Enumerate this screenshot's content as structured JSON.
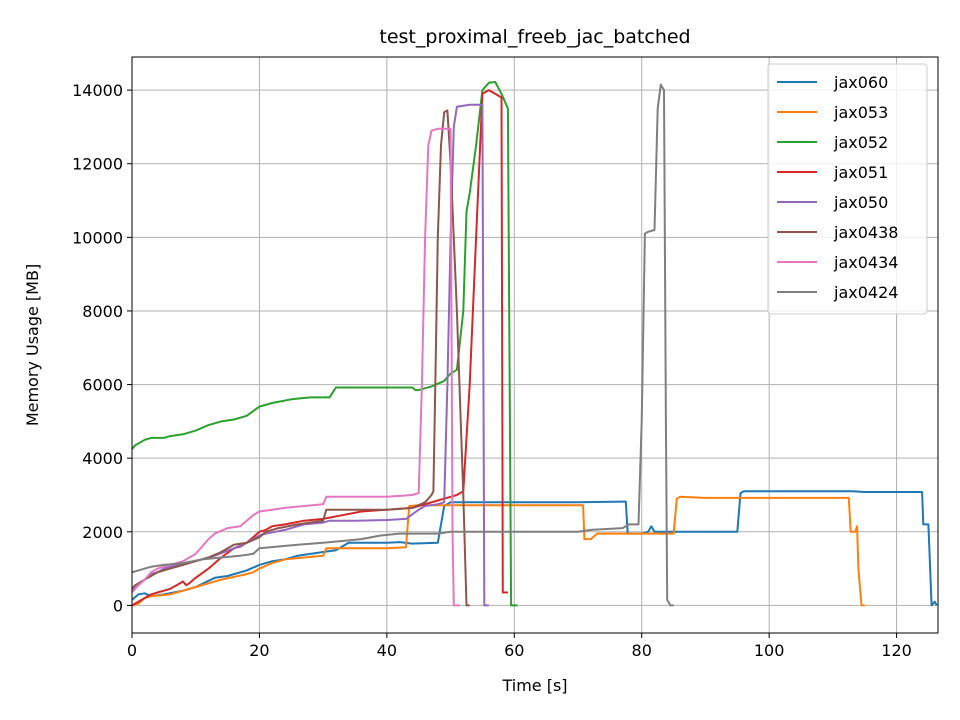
{
  "chart_data": {
    "type": "line",
    "title": "test_proximal_freeb_jac_batched",
    "xlabel": "Time [s]",
    "ylabel": "Memory Usage [MB]",
    "xlim": [
      0,
      126.5
    ],
    "ylim": [
      -750,
      14900
    ],
    "xticks": [
      0,
      20,
      40,
      60,
      80,
      100,
      120
    ],
    "yticks": [
      0,
      2000,
      4000,
      6000,
      8000,
      10000,
      12000,
      14000
    ],
    "grid": true,
    "legend_position": "top-right",
    "series": [
      {
        "name": "jax060",
        "color": "#1f77b4",
        "points": [
          [
            0,
            150
          ],
          [
            1,
            300
          ],
          [
            2,
            330
          ],
          [
            3,
            250
          ],
          [
            5,
            300
          ],
          [
            8,
            400
          ],
          [
            10,
            500
          ],
          [
            13,
            750
          ],
          [
            15,
            800
          ],
          [
            18,
            950
          ],
          [
            20,
            1100
          ],
          [
            22,
            1200
          ],
          [
            24,
            1250
          ],
          [
            26,
            1350
          ],
          [
            28,
            1400
          ],
          [
            30,
            1450
          ],
          [
            32,
            1500
          ],
          [
            34,
            1700
          ],
          [
            40,
            1700
          ],
          [
            42,
            1720
          ],
          [
            44,
            1680
          ],
          [
            48,
            1700
          ],
          [
            49,
            2700
          ],
          [
            50,
            2800
          ],
          [
            60,
            2800
          ],
          [
            70,
            2800
          ],
          [
            77,
            2820
          ],
          [
            77.5,
            2820
          ],
          [
            77.8,
            1950
          ],
          [
            80,
            1950
          ],
          [
            81,
            2000
          ],
          [
            81.5,
            2150
          ],
          [
            82,
            2000
          ],
          [
            90,
            2000
          ],
          [
            95,
            2000
          ],
          [
            95.5,
            3050
          ],
          [
            96,
            3100
          ],
          [
            110,
            3100
          ],
          [
            113,
            3100
          ],
          [
            115,
            3080
          ],
          [
            120,
            3080
          ],
          [
            124,
            3080
          ],
          [
            124.2,
            2200
          ],
          [
            125,
            2200
          ],
          [
            125.5,
            0
          ],
          [
            126,
            100
          ],
          [
            126.3,
            0
          ]
        ]
      },
      {
        "name": "jax053",
        "color": "#ff7f0e",
        "points": [
          [
            0,
            0
          ],
          [
            1,
            50
          ],
          [
            2,
            200
          ],
          [
            3,
            250
          ],
          [
            6,
            300
          ],
          [
            10,
            500
          ],
          [
            14,
            700
          ],
          [
            18,
            850
          ],
          [
            19,
            900
          ],
          [
            20,
            1000
          ],
          [
            22,
            1150
          ],
          [
            24,
            1250
          ],
          [
            27,
            1300
          ],
          [
            30,
            1350
          ],
          [
            30.5,
            1550
          ],
          [
            35,
            1550
          ],
          [
            40,
            1550
          ],
          [
            43,
            1580
          ],
          [
            43.5,
            2700
          ],
          [
            45,
            2720
          ],
          [
            50,
            2720
          ],
          [
            60,
            2720
          ],
          [
            70,
            2720
          ],
          [
            70.8,
            2720
          ],
          [
            71,
            1800
          ],
          [
            72,
            1800
          ],
          [
            73,
            1950
          ],
          [
            75,
            1950
          ],
          [
            80,
            1950
          ],
          [
            85,
            1950
          ],
          [
            85.5,
            2900
          ],
          [
            86,
            2950
          ],
          [
            90,
            2920
          ],
          [
            100,
            2920
          ],
          [
            110,
            2920
          ],
          [
            112.5,
            2920
          ],
          [
            112.8,
            2000
          ],
          [
            113.5,
            2000
          ],
          [
            113.8,
            2150
          ],
          [
            114,
            1000
          ],
          [
            114.5,
            0
          ],
          [
            115,
            0
          ]
        ]
      },
      {
        "name": "jax052",
        "color": "#2ca02c",
        "points": [
          [
            0,
            4250
          ],
          [
            0.5,
            4350
          ],
          [
            1,
            4400
          ],
          [
            2,
            4500
          ],
          [
            3,
            4550
          ],
          [
            5,
            4550
          ],
          [
            6,
            4600
          ],
          [
            8,
            4650
          ],
          [
            10,
            4750
          ],
          [
            12,
            4900
          ],
          [
            14,
            5000
          ],
          [
            16,
            5050
          ],
          [
            18,
            5150
          ],
          [
            20,
            5400
          ],
          [
            22,
            5500
          ],
          [
            25,
            5600
          ],
          [
            28,
            5650
          ],
          [
            31,
            5650
          ],
          [
            32,
            5920
          ],
          [
            35,
            5920
          ],
          [
            40,
            5920
          ],
          [
            44,
            5920
          ],
          [
            44.5,
            5850
          ],
          [
            45,
            5850
          ],
          [
            47,
            5950
          ],
          [
            49,
            6100
          ],
          [
            50,
            6300
          ],
          [
            51,
            6400
          ],
          [
            52,
            8000
          ],
          [
            52.5,
            10700
          ],
          [
            53,
            11200
          ],
          [
            54,
            12500
          ],
          [
            55,
            14000
          ],
          [
            56,
            14200
          ],
          [
            57,
            14220
          ],
          [
            58,
            13900
          ],
          [
            59,
            13500
          ],
          [
            59.5,
            0
          ],
          [
            60.5,
            0
          ]
        ]
      },
      {
        "name": "jax051",
        "color": "#d62728",
        "points": [
          [
            0,
            0
          ],
          [
            2,
            200
          ],
          [
            3,
            300
          ],
          [
            4,
            350
          ],
          [
            5,
            400
          ],
          [
            6,
            450
          ],
          [
            7,
            550
          ],
          [
            8,
            650
          ],
          [
            8.5,
            550
          ],
          [
            9,
            600
          ],
          [
            10,
            750
          ],
          [
            12,
            1000
          ],
          [
            14,
            1300
          ],
          [
            16,
            1550
          ],
          [
            17,
            1600
          ],
          [
            18,
            1700
          ],
          [
            19,
            1850
          ],
          [
            20,
            2000
          ],
          [
            21,
            2050
          ],
          [
            22,
            2150
          ],
          [
            24,
            2200
          ],
          [
            27,
            2300
          ],
          [
            30,
            2350
          ],
          [
            33,
            2450
          ],
          [
            36,
            2550
          ],
          [
            40,
            2600
          ],
          [
            44,
            2650
          ],
          [
            46,
            2750
          ],
          [
            48,
            2850
          ],
          [
            50,
            2950
          ],
          [
            51,
            3000
          ],
          [
            52,
            3100
          ],
          [
            53,
            6000
          ],
          [
            54,
            10000
          ],
          [
            55,
            13900
          ],
          [
            56,
            14000
          ],
          [
            57,
            13900
          ],
          [
            58,
            13800
          ],
          [
            58.2,
            350
          ],
          [
            59,
            350
          ]
        ]
      },
      {
        "name": "jax050",
        "color": "#9467bd",
        "points": [
          [
            0,
            400
          ],
          [
            1,
            550
          ],
          [
            2,
            700
          ],
          [
            3,
            850
          ],
          [
            4,
            900
          ],
          [
            5,
            1000
          ],
          [
            6,
            1050
          ],
          [
            7,
            1100
          ],
          [
            10,
            1200
          ],
          [
            13,
            1350
          ],
          [
            16,
            1550
          ],
          [
            18,
            1700
          ],
          [
            20,
            1900
          ],
          [
            21,
            1950
          ],
          [
            24,
            2050
          ],
          [
            27,
            2200
          ],
          [
            30,
            2250
          ],
          [
            31,
            2300
          ],
          [
            35,
            2300
          ],
          [
            40,
            2320
          ],
          [
            43,
            2350
          ],
          [
            45,
            2600
          ],
          [
            46,
            2700
          ],
          [
            48,
            2750
          ],
          [
            49,
            2800
          ],
          [
            49.5,
            6000
          ],
          [
            50,
            10000
          ],
          [
            50.5,
            13000
          ],
          [
            51,
            13550
          ],
          [
            53,
            13600
          ],
          [
            55,
            13600
          ],
          [
            55.3,
            0
          ],
          [
            56,
            0
          ]
        ]
      },
      {
        "name": "jax0438",
        "color": "#8c564b",
        "points": [
          [
            0,
            450
          ],
          [
            0.5,
            550
          ],
          [
            1,
            600
          ],
          [
            2,
            700
          ],
          [
            3,
            800
          ],
          [
            4,
            900
          ],
          [
            6,
            1000
          ],
          [
            8,
            1100
          ],
          [
            10,
            1200
          ],
          [
            12,
            1300
          ],
          [
            14,
            1450
          ],
          [
            16,
            1650
          ],
          [
            18,
            1700
          ],
          [
            20,
            1850
          ],
          [
            21,
            2000
          ],
          [
            23,
            2100
          ],
          [
            26,
            2200
          ],
          [
            30,
            2300
          ],
          [
            30.5,
            2600
          ],
          [
            35,
            2600
          ],
          [
            40,
            2600
          ],
          [
            44,
            2650
          ],
          [
            46,
            2800
          ],
          [
            47,
            3000
          ],
          [
            47.3,
            3100
          ],
          [
            47.6,
            6000
          ],
          [
            48,
            10000
          ],
          [
            48.5,
            12500
          ],
          [
            49,
            13400
          ],
          [
            49.5,
            13450
          ],
          [
            50,
            12000
          ],
          [
            51,
            8000
          ],
          [
            52,
            3000
          ],
          [
            52.5,
            0
          ],
          [
            53,
            0
          ]
        ]
      },
      {
        "name": "jax0434",
        "color": "#e377c2",
        "points": [
          [
            0,
            350
          ],
          [
            1,
            550
          ],
          [
            2,
            700
          ],
          [
            3,
            900
          ],
          [
            4,
            1000
          ],
          [
            6,
            1100
          ],
          [
            8,
            1200
          ],
          [
            10,
            1400
          ],
          [
            12,
            1800
          ],
          [
            13,
            1950
          ],
          [
            15,
            2100
          ],
          [
            17,
            2150
          ],
          [
            18,
            2300
          ],
          [
            19,
            2450
          ],
          [
            20,
            2550
          ],
          [
            22,
            2600
          ],
          [
            24,
            2650
          ],
          [
            27,
            2700
          ],
          [
            30,
            2750
          ],
          [
            30.5,
            2950
          ],
          [
            35,
            2950
          ],
          [
            40,
            2950
          ],
          [
            44,
            3000
          ],
          [
            45,
            3050
          ],
          [
            45.5,
            6000
          ],
          [
            46,
            10000
          ],
          [
            46.5,
            12500
          ],
          [
            47,
            12900
          ],
          [
            48,
            12950
          ],
          [
            50,
            12950
          ],
          [
            50.3,
            2000
          ],
          [
            50.5,
            0
          ],
          [
            51.5,
            0
          ]
        ]
      },
      {
        "name": "jax0424",
        "color": "#7f7f7f",
        "points": [
          [
            0,
            900
          ],
          [
            1,
            950
          ],
          [
            2,
            1000
          ],
          [
            3,
            1050
          ],
          [
            5,
            1100
          ],
          [
            8,
            1150
          ],
          [
            11,
            1250
          ],
          [
            14,
            1300
          ],
          [
            17,
            1350
          ],
          [
            19,
            1400
          ],
          [
            20,
            1550
          ],
          [
            23,
            1600
          ],
          [
            26,
            1650
          ],
          [
            30,
            1700
          ],
          [
            33,
            1750
          ],
          [
            36,
            1800
          ],
          [
            39,
            1900
          ],
          [
            42,
            1950
          ],
          [
            48,
            1950
          ],
          [
            50,
            2000
          ],
          [
            60,
            2000
          ],
          [
            70,
            2000
          ],
          [
            72,
            2050
          ],
          [
            77,
            2100
          ],
          [
            78,
            2200
          ],
          [
            79.5,
            2200
          ],
          [
            80,
            5000
          ],
          [
            80.5,
            10100
          ],
          [
            81,
            10150
          ],
          [
            82,
            10200
          ],
          [
            82.5,
            13500
          ],
          [
            83,
            14150
          ],
          [
            83.5,
            14000
          ],
          [
            83.8,
            5000
          ],
          [
            84,
            150
          ],
          [
            84.5,
            0
          ],
          [
            85,
            0
          ]
        ]
      }
    ]
  }
}
